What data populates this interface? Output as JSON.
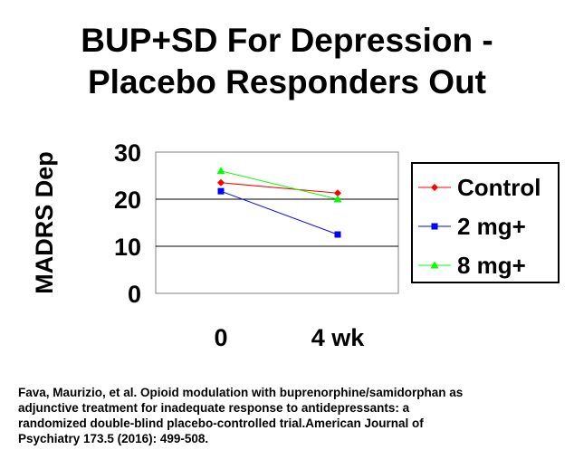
{
  "page": {
    "title_lines": [
      "BUP+SD For Depression -",
      "Placebo Responders Out"
    ],
    "citation_lines": [
      "Fava, Maurizio, et al. Opioid modulation with buprenorphine/samidorphan as",
      "adjunctive treatment for inadequate response to antidepressants: a",
      "randomized double-blind placebo-controlled trial.American Journal of",
      "Psychiatry 173.5 (2016): 499-508."
    ]
  },
  "chart_data": {
    "type": "line",
    "title": "BUP+SD For Depression - Placebo Responders Out",
    "ylabel": "MADRS Dep",
    "xlabel": "",
    "categories": [
      "0",
      "4 wk"
    ],
    "ylim": [
      0,
      30
    ],
    "yticks": [
      0,
      10,
      20,
      30
    ],
    "grid": true,
    "legend": "right",
    "series": [
      {
        "name": "Control",
        "values": [
          23.5,
          21.3
        ],
        "color": "#ff0000",
        "marker": "diamond"
      },
      {
        "name": "2 mg+",
        "values": [
          21.7,
          12.5
        ],
        "color": "#0000ff",
        "marker": "square"
      },
      {
        "name": "8 mg+",
        "values": [
          26.0,
          20.0
        ],
        "color": "#00ff00",
        "marker": "triangle"
      }
    ]
  }
}
